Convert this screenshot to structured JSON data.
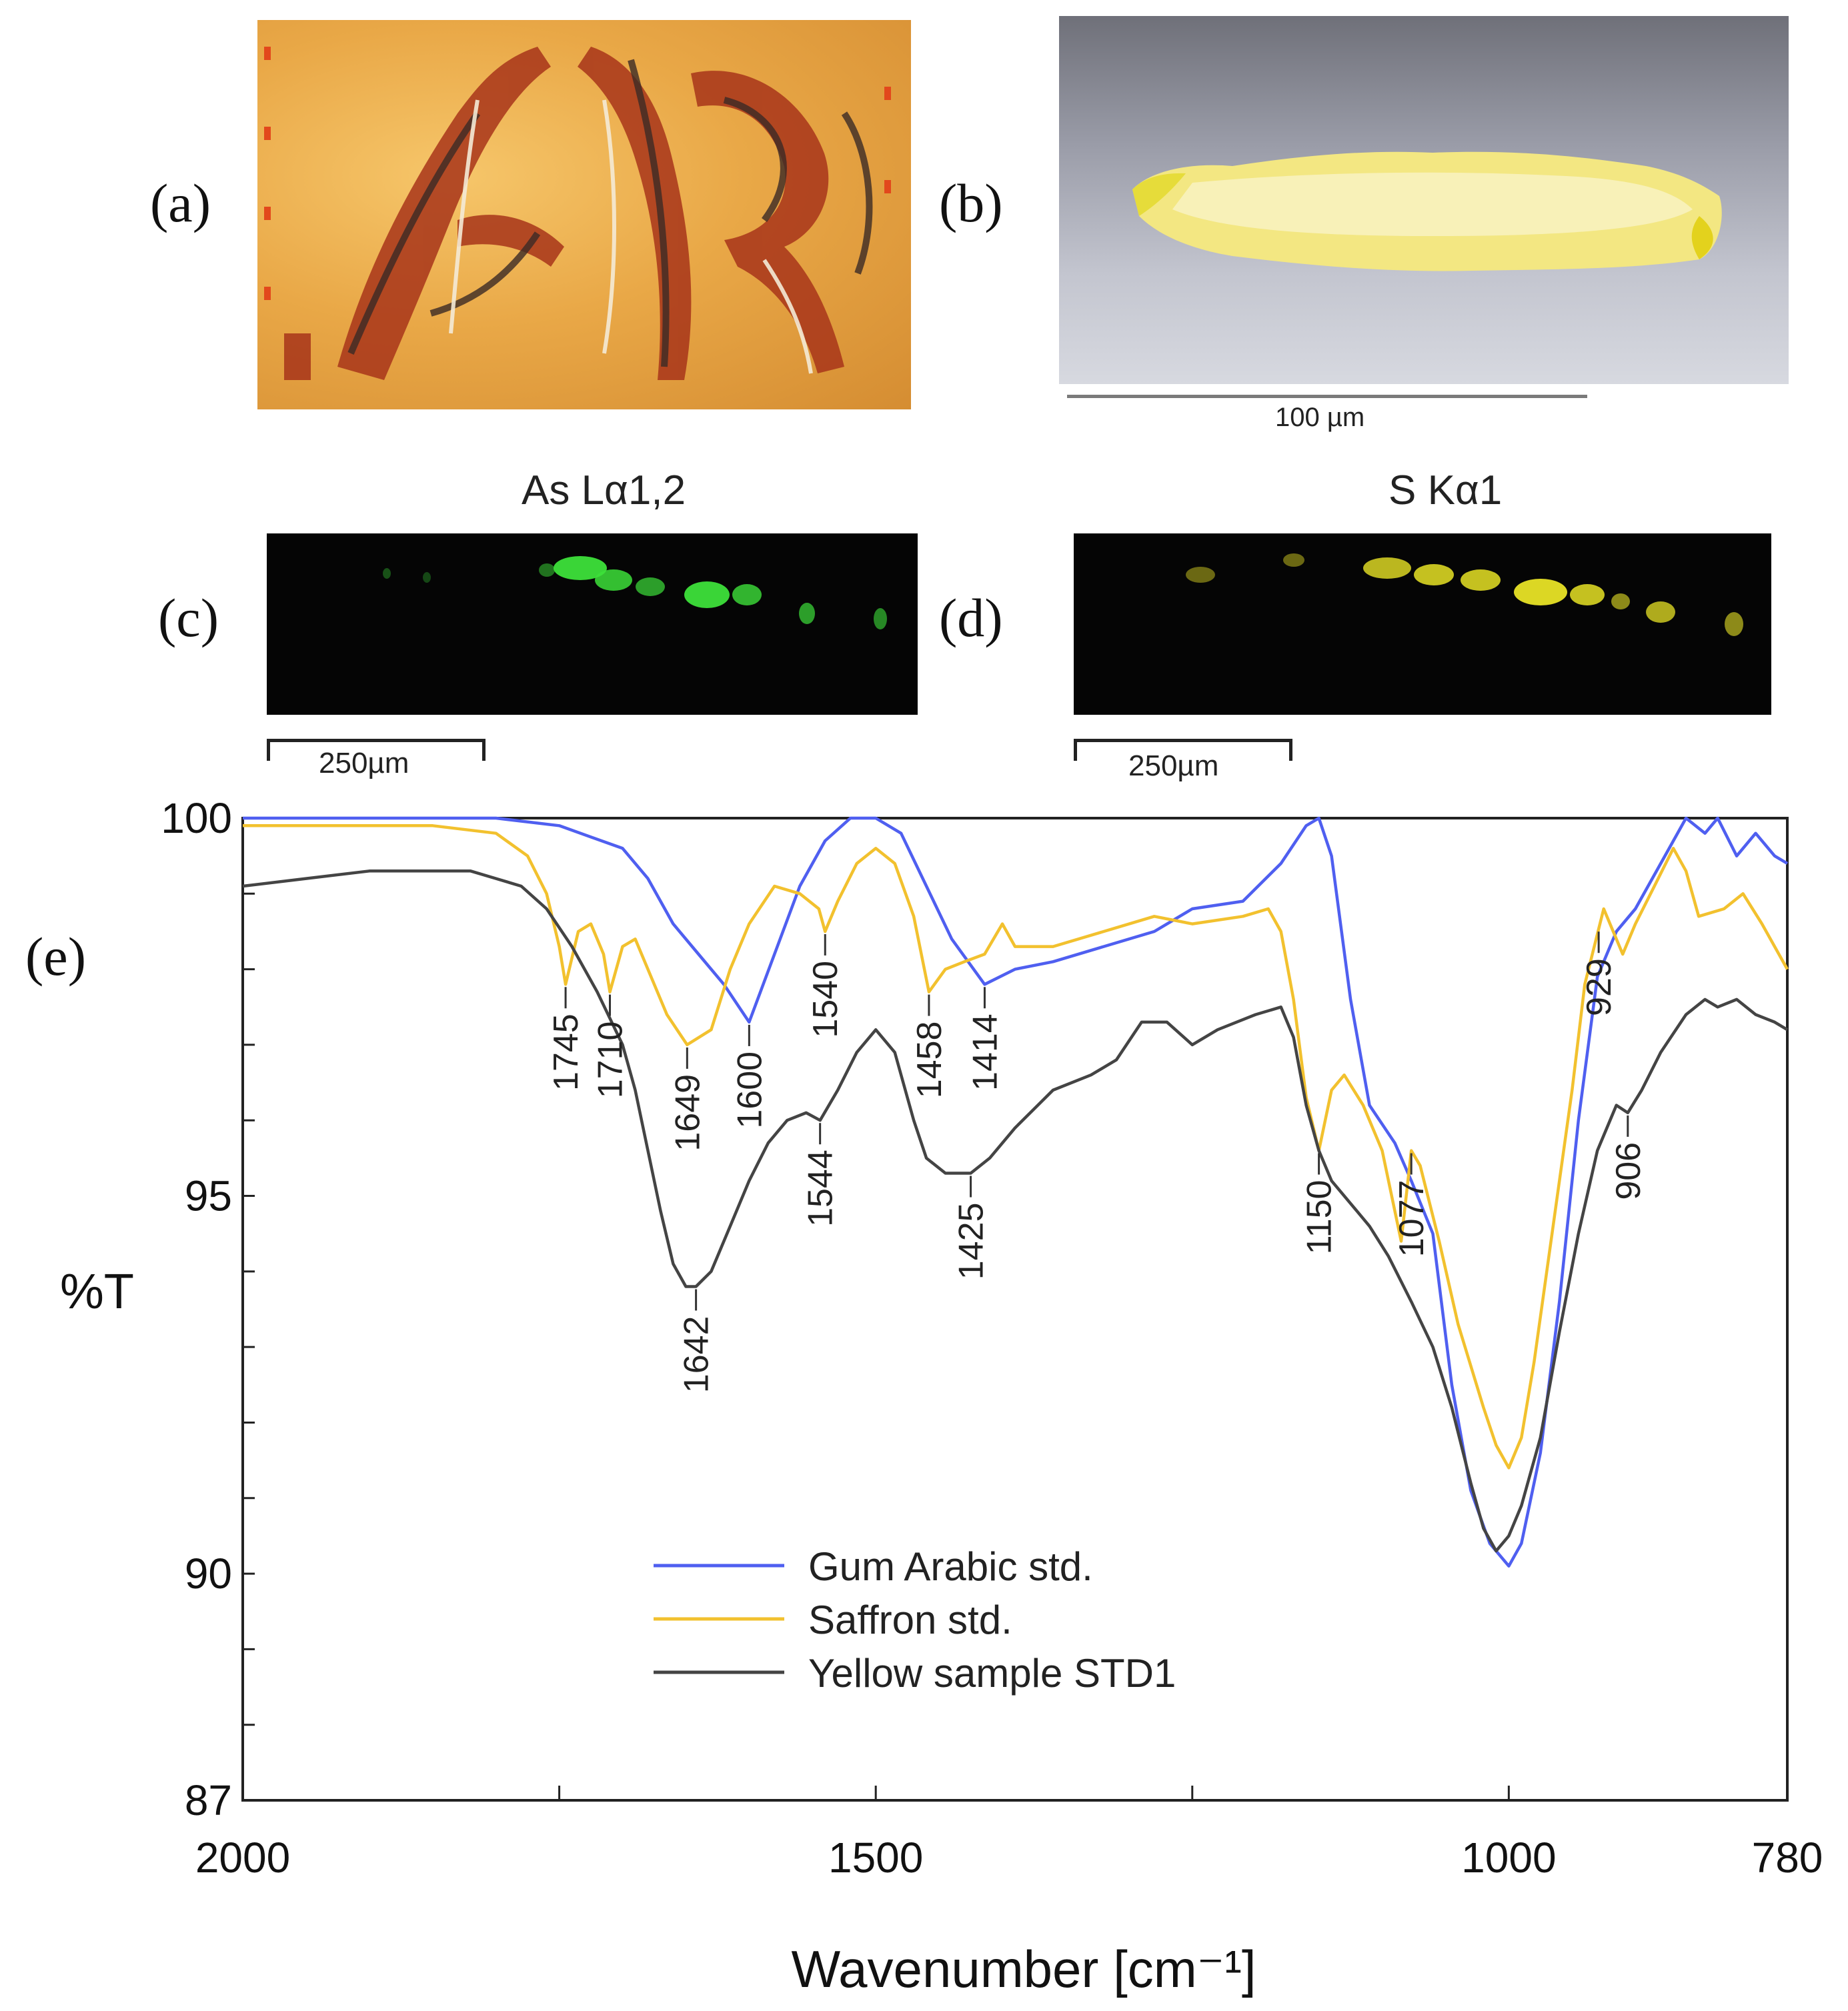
{
  "panels": {
    "a_label": "(a)",
    "b_label": "(b)",
    "c_label": "(c)",
    "d_label": "(d)",
    "e_label": "(e)"
  },
  "photo_b": {
    "scale_label": "100 µm"
  },
  "map_c": {
    "title": "As Lα1,2",
    "scale_label": "250µm",
    "color": "#3de03a"
  },
  "map_d": {
    "title": "S Kα1",
    "scale_label": "250µm",
    "color": "#e8e326"
  },
  "chart_data": {
    "type": "line",
    "title": "",
    "xlabel": "Wavenumber [cm⁻¹]",
    "ylabel": "%T",
    "xlim": [
      2000,
      780
    ],
    "ylim": [
      87,
      100
    ],
    "x_ticks": [
      2000,
      1500,
      1000,
      780
    ],
    "y_ticks": [
      87,
      90,
      95,
      100
    ],
    "legend": {
      "position": "lower-center"
    },
    "series": [
      {
        "name": "Gum Arabic std.",
        "color": "#4f5ff0",
        "points": [
          [
            2000,
            100
          ],
          [
            1900,
            100
          ],
          [
            1800,
            100
          ],
          [
            1750,
            99.9
          ],
          [
            1700,
            99.6
          ],
          [
            1680,
            99.2
          ],
          [
            1660,
            98.6
          ],
          [
            1640,
            98.2
          ],
          [
            1620,
            97.8
          ],
          [
            1600,
            97.3
          ],
          [
            1580,
            98.2
          ],
          [
            1560,
            99.1
          ],
          [
            1540,
            99.7
          ],
          [
            1520,
            100
          ],
          [
            1500,
            100
          ],
          [
            1480,
            99.8
          ],
          [
            1460,
            99.1
          ],
          [
            1440,
            98.4
          ],
          [
            1414,
            97.8
          ],
          [
            1390,
            98.0
          ],
          [
            1360,
            98.1
          ],
          [
            1320,
            98.3
          ],
          [
            1280,
            98.5
          ],
          [
            1250,
            98.8
          ],
          [
            1210,
            98.9
          ],
          [
            1180,
            99.4
          ],
          [
            1160,
            99.9
          ],
          [
            1150,
            100
          ],
          [
            1140,
            99.5
          ],
          [
            1125,
            97.6
          ],
          [
            1110,
            96.2
          ],
          [
            1090,
            95.7
          ],
          [
            1077,
            95.2
          ],
          [
            1060,
            94.5
          ],
          [
            1045,
            92.5
          ],
          [
            1030,
            91.1
          ],
          [
            1015,
            90.4
          ],
          [
            1000,
            90.1
          ],
          [
            990,
            90.4
          ],
          [
            975,
            91.6
          ],
          [
            960,
            93.6
          ],
          [
            945,
            96.0
          ],
          [
            930,
            97.9
          ],
          [
            915,
            98.5
          ],
          [
            900,
            98.8
          ],
          [
            880,
            99.4
          ],
          [
            860,
            100
          ],
          [
            845,
            99.8
          ],
          [
            835,
            100
          ],
          [
            820,
            99.5
          ],
          [
            805,
            99.8
          ],
          [
            790,
            99.5
          ],
          [
            780,
            99.4
          ]
        ]
      },
      {
        "name": "Saffron std.",
        "color": "#f2c12e",
        "points": [
          [
            2000,
            99.9
          ],
          [
            1950,
            99.9
          ],
          [
            1900,
            99.9
          ],
          [
            1850,
            99.9
          ],
          [
            1800,
            99.8
          ],
          [
            1775,
            99.5
          ],
          [
            1760,
            99.0
          ],
          [
            1750,
            98.3
          ],
          [
            1745,
            97.8
          ],
          [
            1735,
            98.5
          ],
          [
            1725,
            98.6
          ],
          [
            1715,
            98.2
          ],
          [
            1710,
            97.7
          ],
          [
            1700,
            98.3
          ],
          [
            1690,
            98.4
          ],
          [
            1680,
            98.0
          ],
          [
            1665,
            97.4
          ],
          [
            1649,
            97.0
          ],
          [
            1630,
            97.2
          ],
          [
            1615,
            98.0
          ],
          [
            1600,
            98.6
          ],
          [
            1580,
            99.1
          ],
          [
            1560,
            99.0
          ],
          [
            1545,
            98.8
          ],
          [
            1540,
            98.5
          ],
          [
            1530,
            98.9
          ],
          [
            1515,
            99.4
          ],
          [
            1500,
            99.6
          ],
          [
            1485,
            99.4
          ],
          [
            1470,
            98.7
          ],
          [
            1458,
            97.7
          ],
          [
            1445,
            98.0
          ],
          [
            1430,
            98.1
          ],
          [
            1414,
            98.2
          ],
          [
            1400,
            98.6
          ],
          [
            1390,
            98.3
          ],
          [
            1360,
            98.3
          ],
          [
            1320,
            98.5
          ],
          [
            1280,
            98.7
          ],
          [
            1250,
            98.6
          ],
          [
            1210,
            98.7
          ],
          [
            1190,
            98.8
          ],
          [
            1180,
            98.5
          ],
          [
            1170,
            97.6
          ],
          [
            1160,
            96.3
          ],
          [
            1150,
            95.6
          ],
          [
            1140,
            96.4
          ],
          [
            1130,
            96.6
          ],
          [
            1115,
            96.2
          ],
          [
            1100,
            95.6
          ],
          [
            1090,
            94.8
          ],
          [
            1085,
            94.4
          ],
          [
            1077,
            95.6
          ],
          [
            1070,
            95.4
          ],
          [
            1055,
            94.4
          ],
          [
            1040,
            93.3
          ],
          [
            1020,
            92.2
          ],
          [
            1010,
            91.7
          ],
          [
            1000,
            91.4
          ],
          [
            990,
            91.8
          ],
          [
            980,
            92.8
          ],
          [
            965,
            94.6
          ],
          [
            950,
            96.4
          ],
          [
            940,
            97.8
          ],
          [
            925,
            98.8
          ],
          [
            910,
            98.2
          ],
          [
            900,
            98.6
          ],
          [
            885,
            99.1
          ],
          [
            870,
            99.6
          ],
          [
            860,
            99.3
          ],
          [
            850,
            98.7
          ],
          [
            830,
            98.8
          ],
          [
            815,
            99.0
          ],
          [
            800,
            98.6
          ],
          [
            790,
            98.3
          ],
          [
            780,
            98.0
          ]
        ]
      },
      {
        "name": "Yellow sample STD1",
        "color": "#444444",
        "points": [
          [
            2000,
            99.1
          ],
          [
            1950,
            99.2
          ],
          [
            1900,
            99.3
          ],
          [
            1850,
            99.3
          ],
          [
            1820,
            99.3
          ],
          [
            1800,
            99.2
          ],
          [
            1780,
            99.1
          ],
          [
            1760,
            98.8
          ],
          [
            1740,
            98.3
          ],
          [
            1720,
            97.7
          ],
          [
            1700,
            97.0
          ],
          [
            1690,
            96.4
          ],
          [
            1680,
            95.6
          ],
          [
            1670,
            94.8
          ],
          [
            1660,
            94.1
          ],
          [
            1650,
            93.8
          ],
          [
            1642,
            93.8
          ],
          [
            1630,
            94.0
          ],
          [
            1615,
            94.6
          ],
          [
            1600,
            95.2
          ],
          [
            1585,
            95.7
          ],
          [
            1570,
            96.0
          ],
          [
            1555,
            96.1
          ],
          [
            1544,
            96.0
          ],
          [
            1530,
            96.4
          ],
          [
            1515,
            96.9
          ],
          [
            1500,
            97.2
          ],
          [
            1485,
            96.9
          ],
          [
            1470,
            96.0
          ],
          [
            1460,
            95.5
          ],
          [
            1445,
            95.3
          ],
          [
            1425,
            95.3
          ],
          [
            1410,
            95.5
          ],
          [
            1390,
            95.9
          ],
          [
            1360,
            96.4
          ],
          [
            1330,
            96.6
          ],
          [
            1310,
            96.8
          ],
          [
            1290,
            97.3
          ],
          [
            1270,
            97.3
          ],
          [
            1250,
            97.0
          ],
          [
            1230,
            97.2
          ],
          [
            1200,
            97.4
          ],
          [
            1180,
            97.5
          ],
          [
            1170,
            97.1
          ],
          [
            1160,
            96.2
          ],
          [
            1150,
            95.6
          ],
          [
            1140,
            95.2
          ],
          [
            1125,
            94.9
          ],
          [
            1110,
            94.6
          ],
          [
            1095,
            94.2
          ],
          [
            1077,
            93.6
          ],
          [
            1060,
            93.0
          ],
          [
            1045,
            92.2
          ],
          [
            1030,
            91.2
          ],
          [
            1020,
            90.6
          ],
          [
            1010,
            90.3
          ],
          [
            1000,
            90.5
          ],
          [
            990,
            90.9
          ],
          [
            975,
            91.8
          ],
          [
            960,
            93.2
          ],
          [
            945,
            94.5
          ],
          [
            930,
            95.6
          ],
          [
            915,
            96.2
          ],
          [
            906,
            96.1
          ],
          [
            895,
            96.4
          ],
          [
            880,
            96.9
          ],
          [
            860,
            97.4
          ],
          [
            845,
            97.6
          ],
          [
            835,
            97.5
          ],
          [
            820,
            97.6
          ],
          [
            805,
            97.4
          ],
          [
            790,
            97.3
          ],
          [
            780,
            97.2
          ]
        ]
      }
    ],
    "annotations": [
      {
        "text": "1745",
        "x": 1745,
        "series": "Saffron std."
      },
      {
        "text": "1710",
        "x": 1710,
        "series": "Saffron std."
      },
      {
        "text": "1649",
        "x": 1649,
        "series": "Saffron std."
      },
      {
        "text": "1600",
        "x": 1600,
        "series": "Gum Arabic std."
      },
      {
        "text": "1540",
        "x": 1540,
        "series": "Saffron std."
      },
      {
        "text": "1458",
        "x": 1458,
        "series": "Saffron std."
      },
      {
        "text": "1414",
        "x": 1414,
        "series": "Gum Arabic std."
      },
      {
        "text": "1544",
        "x": 1544,
        "series": "Yellow sample STD1"
      },
      {
        "text": "1425",
        "x": 1425,
        "series": "Yellow sample STD1"
      },
      {
        "text": "1642",
        "x": 1642,
        "series": "Yellow sample STD1"
      },
      {
        "text": "1150",
        "x": 1150,
        "series": "Saffron std."
      },
      {
        "text": "1077",
        "x": 1077,
        "series": "Saffron std."
      },
      {
        "text": "929",
        "x": 929,
        "series": "Saffron std."
      },
      {
        "text": "906",
        "x": 906,
        "series": "Yellow sample STD1"
      }
    ]
  }
}
